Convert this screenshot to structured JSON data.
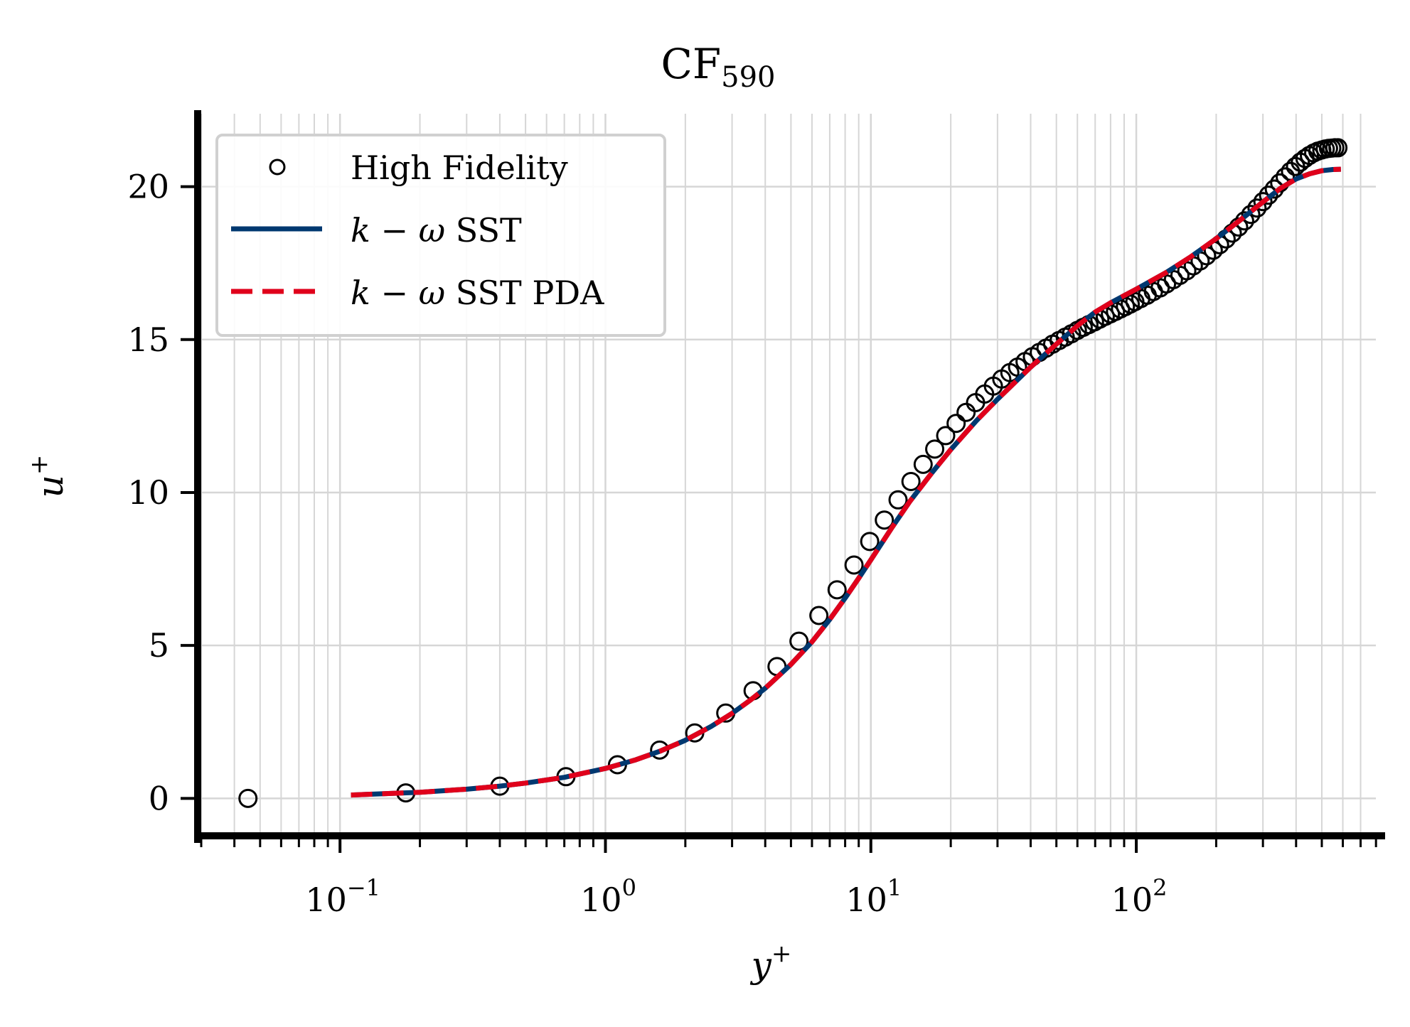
{
  "chart_data": {
    "type": "line",
    "title": "CF",
    "title_subscript": "590",
    "xlabel": "y",
    "xlabel_sup": "+",
    "ylabel": "u",
    "ylabel_sup": "+",
    "xscale": "log",
    "xlim": [
      0.03,
      850
    ],
    "ylim": [
      -1.2,
      22.5
    ],
    "grid": true,
    "legend_position": "top-left",
    "x_ticks": [
      {
        "value": 0.1,
        "base": "10",
        "exp": "−1"
      },
      {
        "value": 1,
        "base": "10",
        "exp": "0"
      },
      {
        "value": 10,
        "base": "10",
        "exp": "1"
      },
      {
        "value": 100,
        "base": "10",
        "exp": "2"
      }
    ],
    "y_ticks": [
      {
        "value": 0,
        "label": "0"
      },
      {
        "value": 5,
        "label": "5"
      },
      {
        "value": 10,
        "label": "10"
      },
      {
        "value": 15,
        "label": "15"
      },
      {
        "value": 20,
        "label": "20"
      }
    ],
    "series": [
      {
        "name": "High Fidelity",
        "style": "markers",
        "color": "#000000",
        "x": [
          0.045,
          0.177,
          0.4,
          0.71,
          1.11,
          1.6,
          2.17,
          2.84,
          3.6,
          4.43,
          5.36,
          6.37,
          7.46,
          8.64,
          9.9,
          11.24,
          12.66,
          14.16,
          15.74,
          17.4,
          19.14,
          20.95,
          22.84,
          24.8,
          26.84,
          28.95,
          31.13,
          33.39,
          35.7,
          38.1,
          40.6,
          43.1,
          45.7,
          48.4,
          51.2,
          54.0,
          57.0,
          60.0,
          63.1,
          66.3,
          69.6,
          72.9,
          76.4,
          79.9,
          83.5,
          87.2,
          91.0,
          94.9,
          98.8,
          104,
          110,
          116,
          123,
          130,
          138,
          146,
          155,
          164,
          174,
          184,
          195,
          206,
          218,
          230,
          243,
          256,
          270,
          285,
          300,
          315,
          331,
          347,
          364,
          381,
          398,
          415,
          432,
          449,
          466,
          483,
          500,
          515,
          530,
          545,
          560,
          575
        ],
        "y": [
          0.0,
          0.18,
          0.4,
          0.71,
          1.1,
          1.58,
          2.14,
          2.79,
          3.52,
          4.31,
          5.14,
          5.98,
          6.82,
          7.63,
          8.4,
          9.1,
          9.76,
          10.36,
          10.92,
          11.42,
          11.86,
          12.26,
          12.62,
          12.94,
          13.22,
          13.48,
          13.71,
          13.92,
          14.1,
          14.28,
          14.44,
          14.58,
          14.72,
          14.85,
          14.97,
          15.08,
          15.19,
          15.3,
          15.4,
          15.49,
          15.58,
          15.67,
          15.76,
          15.84,
          15.92,
          16.0,
          16.08,
          16.16,
          16.24,
          16.34,
          16.45,
          16.57,
          16.69,
          16.82,
          16.96,
          17.1,
          17.25,
          17.41,
          17.57,
          17.74,
          17.92,
          18.1,
          18.29,
          18.48,
          18.68,
          18.88,
          19.09,
          19.3,
          19.51,
          19.72,
          19.92,
          20.12,
          20.32,
          20.5,
          20.66,
          20.8,
          20.92,
          21.02,
          21.1,
          21.16,
          21.2,
          21.23,
          21.25,
          21.26,
          21.27,
          21.27
        ]
      },
      {
        "name": "k − ω SST",
        "style": "solid",
        "color": "#003870",
        "x": [
          0.11,
          0.2,
          0.3,
          0.4,
          0.5,
          0.7,
          1.0,
          1.3,
          1.6,
          2.0,
          2.5,
          3.0,
          3.5,
          4.0,
          5.0,
          6.0,
          7.0,
          8.0,
          9.0,
          10.0,
          12.0,
          14.0,
          17.0,
          20.0,
          25.0,
          30.0,
          40.0,
          50.0,
          60.0,
          70.0,
          80.0,
          100.0,
          130.0,
          160.0,
          200.0,
          250.0,
          300.0,
          350.0,
          400.0,
          450.0,
          500.0,
          550.0,
          590.0
        ],
        "y": [
          0.11,
          0.2,
          0.3,
          0.4,
          0.5,
          0.69,
          0.98,
          1.26,
          1.54,
          1.9,
          2.35,
          2.78,
          3.2,
          3.6,
          4.38,
          5.12,
          5.85,
          6.55,
          7.2,
          7.8,
          8.85,
          9.7,
          10.65,
          11.4,
          12.35,
          13.05,
          14.1,
          14.85,
          15.45,
          15.9,
          16.2,
          16.65,
          17.2,
          17.7,
          18.3,
          18.95,
          19.5,
          19.95,
          20.25,
          20.42,
          20.52,
          20.56,
          20.57
        ]
      },
      {
        "name": "k − ω SST PDA",
        "style": "dashed",
        "color": "#e0001b",
        "x": [
          0.11,
          0.2,
          0.3,
          0.4,
          0.5,
          0.7,
          1.0,
          1.3,
          1.6,
          2.0,
          2.5,
          3.0,
          3.5,
          4.0,
          5.0,
          6.0,
          7.0,
          8.0,
          9.0,
          10.0,
          12.0,
          14.0,
          17.0,
          20.0,
          25.0,
          30.0,
          40.0,
          50.0,
          60.0,
          70.0,
          80.0,
          100.0,
          130.0,
          160.0,
          200.0,
          250.0,
          300.0,
          350.0,
          400.0,
          450.0,
          500.0,
          550.0,
          590.0
        ],
        "y": [
          0.11,
          0.2,
          0.3,
          0.4,
          0.5,
          0.69,
          0.98,
          1.26,
          1.54,
          1.9,
          2.35,
          2.78,
          3.2,
          3.6,
          4.38,
          5.12,
          5.85,
          6.55,
          7.2,
          7.8,
          8.85,
          9.7,
          10.65,
          11.4,
          12.35,
          13.05,
          14.1,
          14.85,
          15.45,
          15.9,
          16.2,
          16.65,
          17.2,
          17.7,
          18.3,
          18.95,
          19.5,
          19.95,
          20.25,
          20.42,
          20.52,
          20.56,
          20.57
        ]
      }
    ]
  },
  "legend": {
    "items": [
      {
        "label_plain": "High Fidelity"
      },
      {
        "label_italic": "k",
        "label_op": " − ",
        "label_greek": "ω",
        "label_rest": " SST"
      },
      {
        "label_italic": "k",
        "label_op": " − ",
        "label_greek": "ω",
        "label_rest": " SST PDA"
      }
    ]
  },
  "colors": {
    "grid": "#d6d6d6",
    "axis": "#000000",
    "legend_border": "#d0d0d0"
  }
}
